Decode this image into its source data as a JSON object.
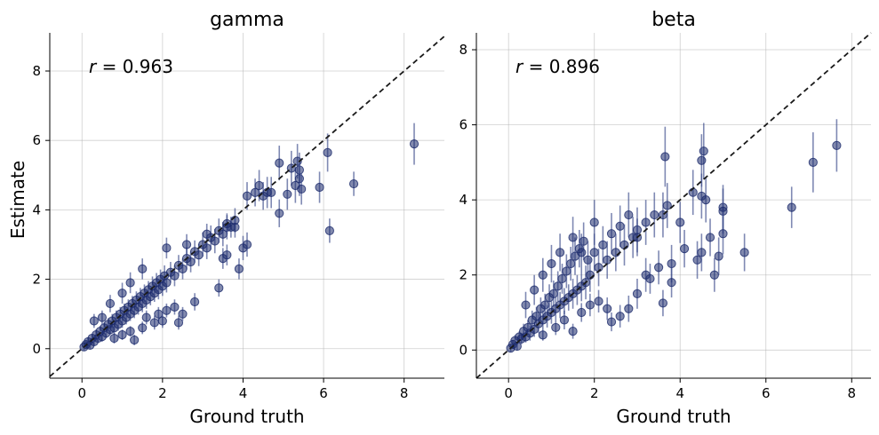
{
  "figure": {
    "ylabel": "Estimate",
    "xlabel": "Ground truth",
    "marker_color": "#1b2a6b",
    "errorbar_color": "#3a4a8a",
    "line_color": "#1a1a1a"
  },
  "chart_data": [
    {
      "type": "scatter",
      "title": "gamma",
      "xlabel": "Ground truth",
      "ylabel": "Estimate",
      "annotation": "r = 0.963",
      "annotation_var": "r",
      "annotation_rest": " = 0.963",
      "xlim": [
        -0.8,
        9.0
      ],
      "ylim": [
        -0.85,
        9.1
      ],
      "xticks": [
        0,
        2,
        4,
        6,
        8
      ],
      "yticks": [
        0,
        2,
        4,
        6,
        8
      ],
      "grid": true,
      "reference_line": "y = x",
      "points": [
        [
          0.05,
          0.05,
          0.1
        ],
        [
          0.1,
          0.12,
          0.1
        ],
        [
          0.15,
          0.2,
          0.12
        ],
        [
          0.2,
          0.1,
          0.1
        ],
        [
          0.25,
          0.3,
          0.12
        ],
        [
          0.3,
          0.2,
          0.12
        ],
        [
          0.35,
          0.4,
          0.15
        ],
        [
          0.4,
          0.3,
          0.12
        ],
        [
          0.45,
          0.5,
          0.15
        ],
        [
          0.5,
          0.35,
          0.15
        ],
        [
          0.55,
          0.6,
          0.15
        ],
        [
          0.6,
          0.45,
          0.15
        ],
        [
          0.65,
          0.7,
          0.18
        ],
        [
          0.7,
          0.55,
          0.15
        ],
        [
          0.75,
          0.8,
          0.2
        ],
        [
          0.8,
          0.6,
          0.18
        ],
        [
          0.85,
          0.9,
          0.2
        ],
        [
          0.9,
          0.7,
          0.18
        ],
        [
          0.95,
          1.0,
          0.2
        ],
        [
          1.0,
          0.8,
          0.2
        ],
        [
          1.05,
          1.1,
          0.2
        ],
        [
          1.1,
          0.9,
          0.2
        ],
        [
          1.15,
          1.2,
          0.22
        ],
        [
          1.2,
          1.0,
          0.2
        ],
        [
          1.25,
          1.3,
          0.22
        ],
        [
          1.3,
          1.1,
          0.22
        ],
        [
          1.35,
          1.4,
          0.25
        ],
        [
          1.4,
          1.2,
          0.22
        ],
        [
          1.45,
          1.5,
          0.25
        ],
        [
          1.5,
          1.3,
          0.25
        ],
        [
          1.55,
          1.6,
          0.25
        ],
        [
          1.6,
          1.4,
          0.25
        ],
        [
          1.65,
          1.7,
          0.25
        ],
        [
          1.7,
          1.5,
          0.25
        ],
        [
          1.75,
          1.8,
          0.28
        ],
        [
          1.8,
          1.6,
          0.25
        ],
        [
          1.85,
          1.9,
          0.28
        ],
        [
          1.9,
          1.7,
          0.28
        ],
        [
          1.95,
          2.0,
          0.28
        ],
        [
          2.0,
          1.8,
          0.28
        ],
        [
          2.05,
          2.1,
          0.3
        ],
        [
          2.1,
          1.9,
          0.28
        ],
        [
          2.2,
          2.2,
          0.3
        ],
        [
          2.3,
          2.1,
          0.3
        ],
        [
          2.4,
          2.4,
          0.3
        ],
        [
          2.5,
          2.3,
          0.3
        ],
        [
          2.6,
          2.6,
          0.32
        ],
        [
          2.7,
          2.5,
          0.3
        ],
        [
          2.8,
          2.8,
          0.32
        ],
        [
          2.9,
          2.7,
          0.32
        ],
        [
          3.0,
          3.0,
          0.35
        ],
        [
          3.1,
          2.9,
          0.32
        ],
        [
          3.2,
          3.2,
          0.35
        ],
        [
          3.3,
          3.1,
          0.35
        ],
        [
          3.4,
          3.4,
          0.35
        ],
        [
          3.5,
          3.3,
          0.35
        ],
        [
          3.6,
          3.5,
          0.35
        ],
        [
          3.8,
          3.7,
          0.35
        ],
        [
          0.3,
          0.8,
          0.2
        ],
        [
          0.5,
          0.9,
          0.2
        ],
        [
          0.7,
          1.3,
          0.25
        ],
        [
          1.0,
          1.6,
          0.3
        ],
        [
          1.2,
          1.9,
          0.3
        ],
        [
          1.5,
          2.3,
          0.3
        ],
        [
          2.1,
          2.9,
          0.3
        ],
        [
          2.6,
          3.0,
          0.3
        ],
        [
          3.1,
          3.3,
          0.3
        ],
        [
          3.7,
          3.5,
          0.3
        ],
        [
          0.8,
          0.3,
          0.15
        ],
        [
          1.0,
          0.4,
          0.15
        ],
        [
          1.2,
          0.5,
          0.15
        ],
        [
          1.3,
          0.25,
          0.15
        ],
        [
          1.5,
          0.6,
          0.18
        ],
        [
          1.6,
          0.9,
          0.2
        ],
        [
          1.8,
          0.75,
          0.2
        ],
        [
          1.9,
          1.0,
          0.2
        ],
        [
          2.0,
          0.8,
          0.2
        ],
        [
          2.1,
          1.1,
          0.2
        ],
        [
          2.3,
          1.2,
          0.22
        ],
        [
          2.4,
          0.75,
          0.2
        ],
        [
          2.5,
          1.0,
          0.2
        ],
        [
          2.8,
          1.35,
          0.25
        ],
        [
          3.4,
          1.75,
          0.25
        ],
        [
          3.5,
          2.6,
          0.3
        ],
        [
          3.6,
          2.7,
          0.3
        ],
        [
          3.9,
          2.3,
          0.3
        ],
        [
          4.0,
          2.9,
          0.35
        ],
        [
          4.1,
          3.0,
          0.35
        ],
        [
          4.1,
          4.4,
          0.4
        ],
        [
          4.3,
          4.5,
          0.4
        ],
        [
          4.4,
          4.7,
          0.45
        ],
        [
          4.5,
          4.4,
          0.4
        ],
        [
          4.6,
          4.5,
          0.45
        ],
        [
          4.7,
          4.5,
          0.45
        ],
        [
          4.9,
          3.9,
          0.4
        ],
        [
          4.9,
          5.35,
          0.5
        ],
        [
          5.1,
          4.45,
          0.45
        ],
        [
          5.2,
          5.2,
          0.5
        ],
        [
          5.3,
          4.7,
          0.5
        ],
        [
          5.35,
          5.4,
          0.5
        ],
        [
          5.4,
          5.15,
          0.5
        ],
        [
          5.4,
          4.9,
          0.5
        ],
        [
          5.45,
          4.6,
          0.45
        ],
        [
          5.9,
          4.65,
          0.45
        ],
        [
          6.1,
          5.65,
          0.55
        ],
        [
          6.15,
          3.4,
          0.35
        ],
        [
          6.75,
          4.75,
          0.35
        ],
        [
          8.25,
          5.9,
          0.6
        ],
        [
          3.6,
          3.6,
          0.3
        ],
        [
          3.8,
          3.5,
          0.3
        ]
      ]
    },
    {
      "type": "scatter",
      "title": "beta",
      "xlabel": "Ground truth",
      "ylabel": "",
      "annotation": "r = 0.896",
      "annotation_var": "r",
      "annotation_rest": " = 0.896",
      "xlim": [
        -0.75,
        8.45
      ],
      "ylim": [
        -0.75,
        8.45
      ],
      "xticks": [
        0,
        2,
        4,
        6,
        8
      ],
      "yticks": [
        0,
        2,
        4,
        6,
        8
      ],
      "grid": true,
      "reference_line": "y = x",
      "points": [
        [
          0.05,
          0.05,
          0.1
        ],
        [
          0.1,
          0.15,
          0.12
        ],
        [
          0.15,
          0.25,
          0.15
        ],
        [
          0.2,
          0.1,
          0.1
        ],
        [
          0.25,
          0.35,
          0.15
        ],
        [
          0.3,
          0.3,
          0.15
        ],
        [
          0.35,
          0.5,
          0.2
        ],
        [
          0.4,
          0.35,
          0.15
        ],
        [
          0.45,
          0.6,
          0.2
        ],
        [
          0.5,
          0.45,
          0.2
        ],
        [
          0.55,
          0.8,
          0.25
        ],
        [
          0.6,
          0.55,
          0.2
        ],
        [
          0.65,
          0.9,
          0.25
        ],
        [
          0.7,
          0.7,
          0.25
        ],
        [
          0.75,
          1.1,
          0.3
        ],
        [
          0.8,
          0.8,
          0.25
        ],
        [
          0.85,
          1.2,
          0.3
        ],
        [
          0.9,
          0.9,
          0.3
        ],
        [
          0.95,
          1.4,
          0.35
        ],
        [
          1.0,
          1.0,
          0.3
        ],
        [
          1.05,
          1.5,
          0.35
        ],
        [
          1.1,
          1.1,
          0.3
        ],
        [
          1.15,
          1.7,
          0.4
        ],
        [
          1.2,
          1.2,
          0.35
        ],
        [
          1.25,
          1.9,
          0.4
        ],
        [
          1.3,
          1.3,
          0.35
        ],
        [
          1.35,
          2.1,
          0.45
        ],
        [
          1.4,
          1.4,
          0.35
        ],
        [
          1.45,
          2.3,
          0.45
        ],
        [
          1.5,
          1.5,
          0.4
        ],
        [
          1.55,
          2.5,
          0.5
        ],
        [
          1.6,
          1.6,
          0.4
        ],
        [
          1.65,
          2.7,
          0.5
        ],
        [
          1.7,
          1.7,
          0.4
        ],
        [
          1.75,
          2.9,
          0.5
        ],
        [
          1.8,
          1.8,
          0.45
        ],
        [
          1.85,
          2.4,
          0.5
        ],
        [
          1.9,
          2.0,
          0.45
        ],
        [
          2.0,
          2.6,
          0.5
        ],
        [
          2.1,
          2.2,
          0.5
        ],
        [
          2.2,
          2.8,
          0.5
        ],
        [
          2.3,
          2.4,
          0.5
        ],
        [
          2.4,
          3.1,
          0.55
        ],
        [
          2.5,
          2.6,
          0.5
        ],
        [
          2.6,
          3.3,
          0.55
        ],
        [
          2.7,
          2.8,
          0.55
        ],
        [
          2.8,
          3.6,
          0.6
        ],
        [
          2.9,
          3.0,
          0.55
        ],
        [
          3.0,
          3.2,
          0.6
        ],
        [
          3.2,
          3.4,
          0.6
        ],
        [
          3.4,
          3.6,
          0.6
        ],
        [
          0.4,
          1.2,
          0.35
        ],
        [
          0.6,
          1.6,
          0.4
        ],
        [
          0.8,
          2.0,
          0.45
        ],
        [
          1.0,
          2.3,
          0.5
        ],
        [
          1.2,
          2.6,
          0.5
        ],
        [
          1.5,
          3.0,
          0.55
        ],
        [
          1.7,
          2.6,
          0.5
        ],
        [
          2.0,
          3.4,
          0.6
        ],
        [
          0.8,
          0.4,
          0.15
        ],
        [
          1.1,
          0.6,
          0.2
        ],
        [
          1.3,
          0.8,
          0.25
        ],
        [
          1.5,
          0.5,
          0.2
        ],
        [
          1.7,
          1.0,
          0.25
        ],
        [
          1.9,
          1.2,
          0.3
        ],
        [
          2.1,
          1.3,
          0.3
        ],
        [
          2.3,
          1.1,
          0.3
        ],
        [
          2.4,
          0.75,
          0.25
        ],
        [
          2.6,
          0.9,
          0.3
        ],
        [
          2.8,
          1.1,
          0.35
        ],
        [
          3.0,
          1.5,
          0.4
        ],
        [
          3.2,
          2.0,
          0.45
        ],
        [
          3.3,
          1.9,
          0.4
        ],
        [
          3.5,
          2.2,
          0.45
        ],
        [
          3.6,
          1.25,
          0.35
        ],
        [
          3.6,
          3.6,
          0.6
        ],
        [
          3.65,
          5.15,
          0.8
        ],
        [
          3.7,
          3.85,
          0.6
        ],
        [
          3.8,
          2.3,
          0.5
        ],
        [
          3.8,
          1.8,
          0.4
        ],
        [
          4.0,
          3.4,
          0.55
        ],
        [
          4.1,
          2.7,
          0.5
        ],
        [
          4.3,
          4.2,
          0.6
        ],
        [
          4.4,
          2.4,
          0.5
        ],
        [
          4.5,
          4.1,
          0.6
        ],
        [
          4.5,
          2.6,
          0.5
        ],
        [
          4.55,
          5.3,
          0.75
        ],
        [
          4.5,
          5.05,
          0.7
        ],
        [
          4.7,
          3.0,
          0.5
        ],
        [
          4.8,
          2.0,
          0.45
        ],
        [
          4.6,
          4.0,
          0.6
        ],
        [
          4.9,
          2.5,
          0.5
        ],
        [
          5.0,
          3.8,
          0.6
        ],
        [
          5.0,
          3.7,
          0.6
        ],
        [
          5.0,
          3.1,
          0.55
        ],
        [
          5.5,
          2.6,
          0.5
        ],
        [
          6.6,
          3.8,
          0.55
        ],
        [
          7.1,
          5.0,
          0.8
        ],
        [
          7.65,
          5.45,
          0.7
        ],
        [
          3.0,
          3.0,
          0.5
        ]
      ]
    }
  ]
}
